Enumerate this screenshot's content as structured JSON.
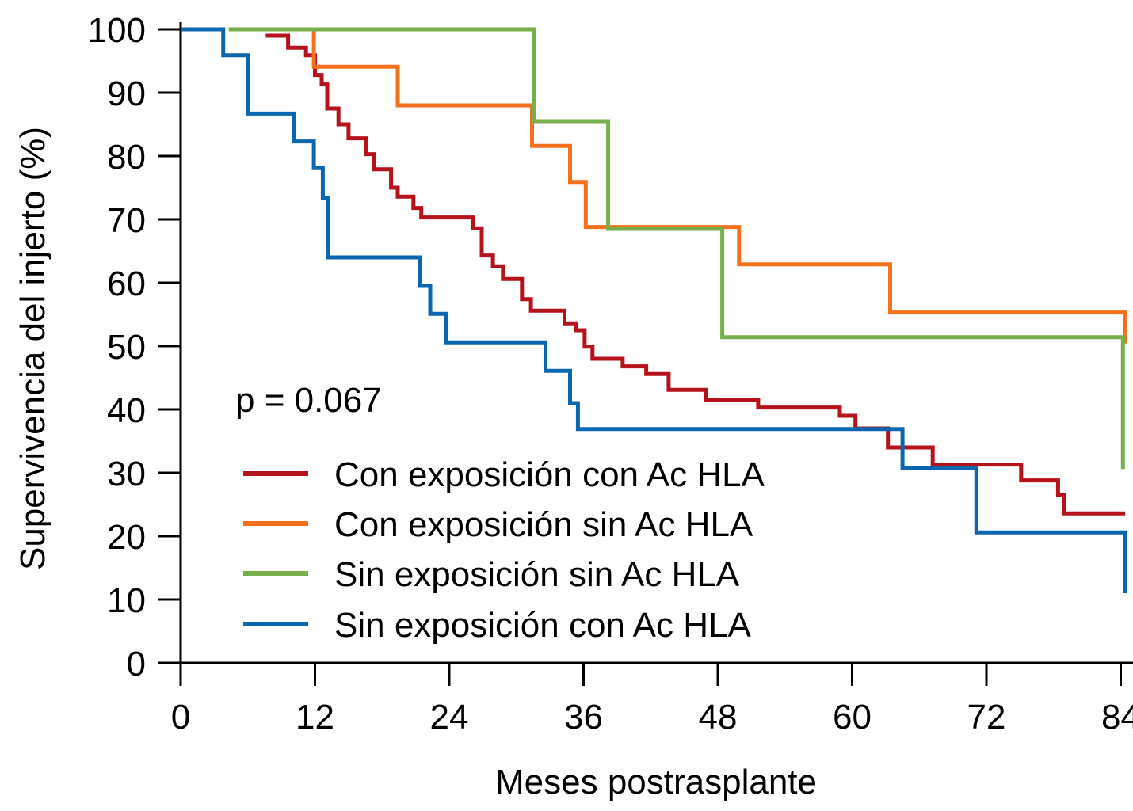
{
  "chart_data": {
    "type": "line",
    "subtype": "kaplan-meier-step",
    "title": "",
    "xlabel": "Meses postrasplante",
    "ylabel": "Supervivencia del injerto (%)",
    "xlim": [
      0,
      84
    ],
    "ylim": [
      0,
      100
    ],
    "xticks": [
      0,
      12,
      24,
      36,
      48,
      60,
      72,
      84
    ],
    "yticks": [
      0,
      10,
      20,
      30,
      40,
      50,
      60,
      70,
      80,
      90,
      100
    ],
    "grid": false,
    "legend_position": "bottom-left",
    "annotations": [
      {
        "text": "p = 0.067"
      }
    ],
    "series": [
      {
        "name": "Con exposición con Ac HLA",
        "color": "#b5121b",
        "points": [
          [
            7.6,
            99
          ],
          [
            9.6,
            99
          ],
          [
            9.6,
            97.1
          ],
          [
            11.2,
            97.1
          ],
          [
            11.2,
            95.9
          ],
          [
            12.0,
            95.9
          ],
          [
            12.0,
            92.8
          ],
          [
            12.6,
            92.8
          ],
          [
            12.6,
            91.3
          ],
          [
            13.1,
            91.3
          ],
          [
            13.1,
            87.5
          ],
          [
            14.1,
            87.5
          ],
          [
            14.1,
            85.0
          ],
          [
            15.0,
            85.0
          ],
          [
            15.0,
            82.8
          ],
          [
            16.6,
            82.8
          ],
          [
            16.6,
            80.3
          ],
          [
            17.3,
            80.3
          ],
          [
            17.3,
            77.9
          ],
          [
            18.8,
            77.9
          ],
          [
            18.8,
            75.0
          ],
          [
            19.4,
            75.0
          ],
          [
            19.4,
            73.6
          ],
          [
            20.8,
            73.6
          ],
          [
            20.8,
            71.8
          ],
          [
            21.5,
            71.8
          ],
          [
            21.5,
            70.3
          ],
          [
            26.1,
            70.3
          ],
          [
            26.1,
            68.6
          ],
          [
            26.9,
            68.6
          ],
          [
            26.9,
            64.3
          ],
          [
            27.9,
            64.3
          ],
          [
            27.9,
            62.6
          ],
          [
            28.8,
            62.6
          ],
          [
            28.8,
            60.6
          ],
          [
            30.5,
            60.6
          ],
          [
            30.5,
            57.4
          ],
          [
            31.3,
            57.4
          ],
          [
            31.3,
            55.6
          ],
          [
            34.3,
            55.6
          ],
          [
            34.3,
            53.6
          ],
          [
            35.3,
            53.6
          ],
          [
            35.3,
            52.5
          ],
          [
            36.1,
            52.5
          ],
          [
            36.1,
            49.9
          ],
          [
            36.8,
            49.9
          ],
          [
            36.8,
            48.0
          ],
          [
            39.5,
            48.0
          ],
          [
            39.5,
            46.8
          ],
          [
            41.6,
            46.8
          ],
          [
            41.6,
            45.6
          ],
          [
            43.6,
            45.6
          ],
          [
            43.6,
            43.1
          ],
          [
            46.9,
            43.1
          ],
          [
            46.9,
            41.5
          ],
          [
            51.6,
            41.5
          ],
          [
            51.6,
            40.3
          ],
          [
            58.9,
            40.3
          ],
          [
            58.9,
            39.0
          ],
          [
            60.3,
            39.0
          ],
          [
            60.3,
            37.0
          ],
          [
            63.2,
            37.0
          ],
          [
            63.2,
            34.0
          ],
          [
            67.2,
            34.0
          ],
          [
            67.2,
            31.3
          ],
          [
            75.1,
            31.3
          ],
          [
            75.1,
            28.8
          ],
          [
            78.4,
            28.8
          ],
          [
            78.4,
            26.5
          ],
          [
            78.9,
            26.5
          ],
          [
            78.9,
            23.6
          ],
          [
            84.4,
            23.6
          ]
        ]
      },
      {
        "name": "Con exposición sin Ac HLA",
        "color": "#f5701a",
        "points": [
          [
            11.9,
            100
          ],
          [
            11.9,
            94.1
          ],
          [
            19.4,
            94.1
          ],
          [
            19.4,
            88.0
          ],
          [
            31.4,
            88.0
          ],
          [
            31.4,
            81.6
          ],
          [
            34.8,
            81.6
          ],
          [
            34.8,
            75.9
          ],
          [
            36.2,
            75.9
          ],
          [
            36.2,
            68.8
          ],
          [
            49.9,
            68.8
          ],
          [
            49.9,
            62.9
          ],
          [
            63.4,
            62.9
          ],
          [
            63.4,
            55.3
          ],
          [
            84.4,
            55.3
          ],
          [
            84.4,
            50.4
          ]
        ]
      },
      {
        "name": "Sin exposición sin Ac HLA",
        "color": "#77b04a",
        "points": [
          [
            4.3,
            100
          ],
          [
            31.6,
            100
          ],
          [
            31.6,
            85.5
          ],
          [
            38.2,
            85.5
          ],
          [
            38.2,
            68.5
          ],
          [
            48.4,
            68.5
          ],
          [
            48.4,
            51.4
          ],
          [
            84.2,
            51.4
          ],
          [
            84.2,
            30.6
          ]
        ]
      },
      {
        "name": "Sin exposición con Ac HLA",
        "color": "#0b66b0",
        "points": [
          [
            0,
            100
          ],
          [
            3.8,
            100
          ],
          [
            3.8,
            95.9
          ],
          [
            6.0,
            95.9
          ],
          [
            6.0,
            86.7
          ],
          [
            10.1,
            86.7
          ],
          [
            10.1,
            82.3
          ],
          [
            11.9,
            82.3
          ],
          [
            11.9,
            78.1
          ],
          [
            12.7,
            78.1
          ],
          [
            12.7,
            73.4
          ],
          [
            13.2,
            73.4
          ],
          [
            13.2,
            64.0
          ],
          [
            21.4,
            64.0
          ],
          [
            21.4,
            59.5
          ],
          [
            22.3,
            59.5
          ],
          [
            22.3,
            55.1
          ],
          [
            23.7,
            55.1
          ],
          [
            23.7,
            50.6
          ],
          [
            32.6,
            50.6
          ],
          [
            32.6,
            46.1
          ],
          [
            34.8,
            46.1
          ],
          [
            34.8,
            41.0
          ],
          [
            35.5,
            41.0
          ],
          [
            35.5,
            36.9
          ],
          [
            64.5,
            36.9
          ],
          [
            64.5,
            30.8
          ],
          [
            71.1,
            30.8
          ],
          [
            71.1,
            20.6
          ],
          [
            84.4,
            20.6
          ],
          [
            84.4,
            11.0
          ]
        ]
      }
    ]
  }
}
